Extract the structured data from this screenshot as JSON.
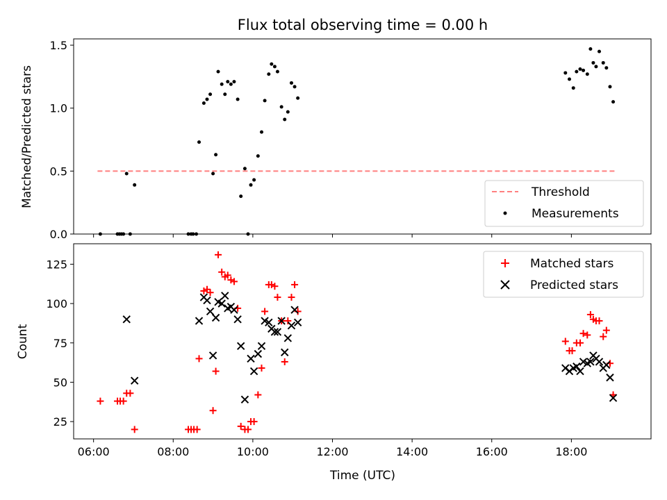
{
  "chart_data": [
    {
      "type": "scatter",
      "title": "Flux total observing time = 0.00 h",
      "xlabel": "",
      "ylabel": "Matched/Predicted stars",
      "xlim": [
        5.5,
        20.0
      ],
      "ylim": [
        0,
        1.55
      ],
      "y_ticks": [
        0.0,
        0.5,
        1.0,
        1.5
      ],
      "y_tick_labels": [
        "0.0",
        "0.5",
        "1.0",
        "1.5"
      ],
      "legend_position": "lower-right",
      "threshold": {
        "name": "Threshold",
        "value": 0.5,
        "x_range": [
          6.1,
          19.1
        ],
        "color": "#ff7f7f",
        "style": "dashed"
      },
      "series": [
        {
          "name": "Measurements",
          "marker": "dot",
          "color": "#000000",
          "points": [
            [
              6.17,
              0.0
            ],
            [
              6.6,
              0.0
            ],
            [
              6.65,
              0.0
            ],
            [
              6.7,
              0.0
            ],
            [
              6.75,
              0.0
            ],
            [
              6.83,
              0.48
            ],
            [
              6.92,
              0.0
            ],
            [
              7.03,
              0.39
            ],
            [
              8.38,
              0.0
            ],
            [
              8.45,
              0.0
            ],
            [
              8.5,
              0.0
            ],
            [
              8.58,
              0.0
            ],
            [
              8.65,
              0.73
            ],
            [
              8.77,
              1.04
            ],
            [
              8.85,
              1.07
            ],
            [
              8.93,
              1.11
            ],
            [
              9.0,
              0.48
            ],
            [
              9.07,
              0.63
            ],
            [
              9.13,
              1.29
            ],
            [
              9.22,
              1.19
            ],
            [
              9.3,
              1.11
            ],
            [
              9.37,
              1.21
            ],
            [
              9.45,
              1.19
            ],
            [
              9.53,
              1.21
            ],
            [
              9.62,
              1.07
            ],
            [
              9.7,
              0.3
            ],
            [
              9.8,
              0.52
            ],
            [
              9.88,
              0.0
            ],
            [
              9.95,
              0.39
            ],
            [
              10.03,
              0.43
            ],
            [
              10.13,
              0.62
            ],
            [
              10.22,
              0.81
            ],
            [
              10.3,
              1.06
            ],
            [
              10.4,
              1.27
            ],
            [
              10.47,
              1.35
            ],
            [
              10.55,
              1.33
            ],
            [
              10.62,
              1.29
            ],
            [
              10.72,
              1.01
            ],
            [
              10.8,
              0.91
            ],
            [
              10.88,
              0.97
            ],
            [
              10.97,
              1.2
            ],
            [
              11.05,
              1.17
            ],
            [
              11.13,
              1.08
            ],
            [
              17.85,
              1.28
            ],
            [
              17.95,
              1.23
            ],
            [
              18.05,
              1.16
            ],
            [
              18.13,
              1.29
            ],
            [
              18.22,
              1.31
            ],
            [
              18.3,
              1.3
            ],
            [
              18.4,
              1.27
            ],
            [
              18.48,
              1.47
            ],
            [
              18.55,
              1.36
            ],
            [
              18.62,
              1.33
            ],
            [
              18.7,
              1.45
            ],
            [
              18.8,
              1.36
            ],
            [
              18.88,
              1.32
            ],
            [
              18.97,
              1.17
            ],
            [
              19.05,
              1.05
            ]
          ]
        }
      ]
    },
    {
      "type": "scatter",
      "title": "",
      "xlabel": "Time (UTC)",
      "ylabel": "Count",
      "xlim": [
        5.5,
        20.0
      ],
      "ylim": [
        14,
        138
      ],
      "x_ticks": [
        6,
        8,
        10,
        12,
        14,
        16,
        18
      ],
      "x_tick_labels": [
        "06:00",
        "08:00",
        "10:00",
        "12:00",
        "14:00",
        "16:00",
        "18:00"
      ],
      "y_ticks": [
        25,
        50,
        75,
        100,
        125
      ],
      "y_tick_labels": [
        "25",
        "50",
        "75",
        "100",
        "125"
      ],
      "legend_position": "upper-right",
      "series": [
        {
          "name": "Matched stars",
          "marker": "plus",
          "color": "#ff0000",
          "points": [
            [
              6.17,
              38
            ],
            [
              6.6,
              38
            ],
            [
              6.67,
              38
            ],
            [
              6.75,
              38
            ],
            [
              6.83,
              43
            ],
            [
              6.92,
              43
            ],
            [
              7.03,
              20
            ],
            [
              8.38,
              20
            ],
            [
              8.45,
              20
            ],
            [
              8.52,
              20
            ],
            [
              8.6,
              20
            ],
            [
              8.65,
              65
            ],
            [
              8.77,
              108
            ],
            [
              8.85,
              109
            ],
            [
              8.93,
              107
            ],
            [
              9.0,
              32
            ],
            [
              9.07,
              57
            ],
            [
              9.13,
              131
            ],
            [
              9.22,
              120
            ],
            [
              9.3,
              117
            ],
            [
              9.37,
              118
            ],
            [
              9.45,
              115
            ],
            [
              9.53,
              114
            ],
            [
              9.62,
              97
            ],
            [
              9.7,
              22
            ],
            [
              9.8,
              20
            ],
            [
              9.88,
              20
            ],
            [
              9.95,
              25
            ],
            [
              10.03,
              25
            ],
            [
              10.13,
              42
            ],
            [
              10.22,
              59
            ],
            [
              10.3,
              95
            ],
            [
              10.4,
              112
            ],
            [
              10.47,
              112
            ],
            [
              10.55,
              111
            ],
            [
              10.62,
              104
            ],
            [
              10.72,
              89
            ],
            [
              10.8,
              63
            ],
            [
              10.88,
              89
            ],
            [
              10.97,
              104
            ],
            [
              11.05,
              112
            ],
            [
              11.13,
              95
            ],
            [
              17.85,
              76
            ],
            [
              17.95,
              70
            ],
            [
              18.02,
              70
            ],
            [
              18.13,
              75
            ],
            [
              18.22,
              75
            ],
            [
              18.3,
              81
            ],
            [
              18.4,
              80
            ],
            [
              18.48,
              93
            ],
            [
              18.55,
              90
            ],
            [
              18.62,
              89
            ],
            [
              18.7,
              89
            ],
            [
              18.8,
              79
            ],
            [
              18.88,
              83
            ],
            [
              18.97,
              62
            ],
            [
              19.05,
              42
            ]
          ]
        },
        {
          "name": "Predicted stars",
          "marker": "x",
          "color": "#000000",
          "points": [
            [
              6.83,
              90
            ],
            [
              7.03,
              51
            ],
            [
              8.65,
              89
            ],
            [
              8.77,
              104
            ],
            [
              8.85,
              102
            ],
            [
              8.93,
              95
            ],
            [
              9.0,
              67
            ],
            [
              9.07,
              91
            ],
            [
              9.13,
              101
            ],
            [
              9.22,
              100
            ],
            [
              9.3,
              105
            ],
            [
              9.37,
              97
            ],
            [
              9.45,
              98
            ],
            [
              9.53,
              96
            ],
            [
              9.62,
              90
            ],
            [
              9.7,
              73
            ],
            [
              9.8,
              39
            ],
            [
              9.95,
              65
            ],
            [
              10.03,
              57
            ],
            [
              10.13,
              68
            ],
            [
              10.22,
              73
            ],
            [
              10.3,
              89
            ],
            [
              10.4,
              88
            ],
            [
              10.47,
              84
            ],
            [
              10.55,
              82
            ],
            [
              10.62,
              82
            ],
            [
              10.72,
              89
            ],
            [
              10.8,
              69
            ],
            [
              10.88,
              78
            ],
            [
              10.97,
              86
            ],
            [
              11.05,
              96
            ],
            [
              11.13,
              88
            ],
            [
              17.85,
              59
            ],
            [
              17.95,
              57
            ],
            [
              18.05,
              59
            ],
            [
              18.13,
              60
            ],
            [
              18.22,
              57
            ],
            [
              18.3,
              63
            ],
            [
              18.4,
              62
            ],
            [
              18.48,
              63
            ],
            [
              18.55,
              67
            ],
            [
              18.62,
              65
            ],
            [
              18.7,
              63
            ],
            [
              18.8,
              59
            ],
            [
              18.88,
              61
            ],
            [
              18.97,
              53
            ],
            [
              19.05,
              40
            ]
          ]
        }
      ]
    }
  ]
}
